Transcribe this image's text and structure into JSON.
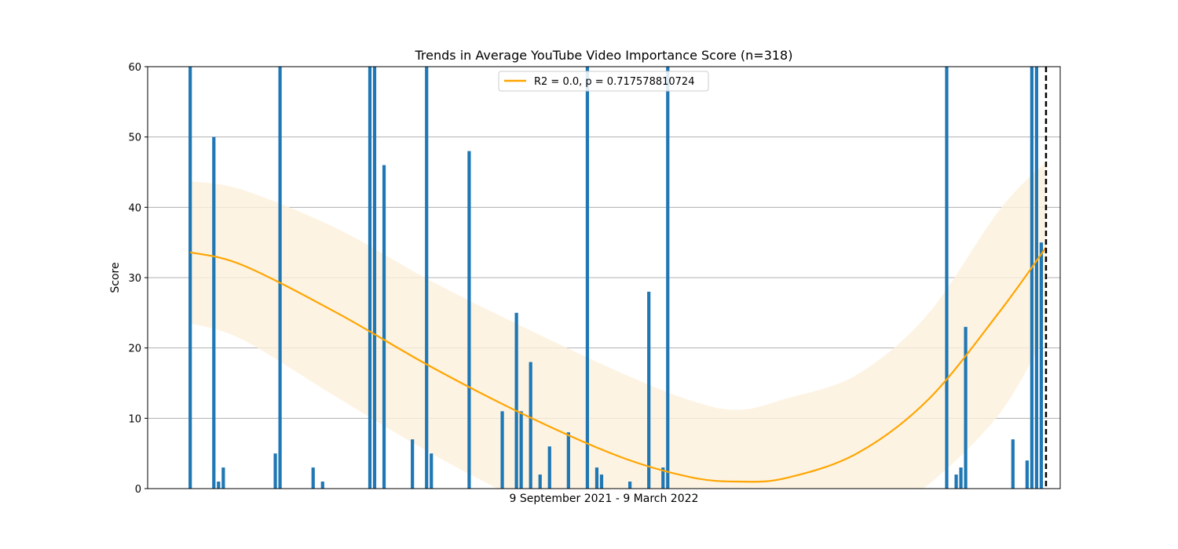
{
  "chart_data": {
    "type": "bar",
    "title": "Trends in Average YouTube Video Importance Score (n=318)",
    "xlabel": "9 September 2021 - 9 March 2022",
    "ylabel": "Score",
    "x_range": [
      0,
      193
    ],
    "ylim": [
      0,
      60
    ],
    "yticks": [
      0,
      10,
      20,
      30,
      40,
      50,
      60
    ],
    "grid": "horizontal",
    "legend_position": "top-center",
    "bar_color": "#1f77b4",
    "trend_color": "#ffa500",
    "band_color": "#fdf0dc",
    "marker_color": "#000000",
    "day_values": [
      [
        9,
        60
      ],
      [
        14,
        50
      ],
      [
        15,
        1
      ],
      [
        16,
        3
      ],
      [
        27,
        5
      ],
      [
        28,
        60
      ],
      [
        35,
        3
      ],
      [
        37,
        1
      ],
      [
        47,
        60
      ],
      [
        48,
        60
      ],
      [
        50,
        46
      ],
      [
        56,
        7
      ],
      [
        59,
        60
      ],
      [
        60,
        5
      ],
      [
        68,
        48
      ],
      [
        75,
        11
      ],
      [
        78,
        25
      ],
      [
        79,
        11
      ],
      [
        81,
        18
      ],
      [
        83,
        2
      ],
      [
        85,
        6
      ],
      [
        89,
        8
      ],
      [
        93,
        60
      ],
      [
        95,
        3
      ],
      [
        96,
        2
      ],
      [
        102,
        1
      ],
      [
        106,
        28
      ],
      [
        109,
        3
      ],
      [
        110,
        60
      ],
      [
        169,
        60
      ],
      [
        171,
        2
      ],
      [
        172,
        3
      ],
      [
        173,
        23
      ],
      [
        183,
        7
      ],
      [
        186,
        4
      ],
      [
        187,
        60
      ],
      [
        188,
        60
      ],
      [
        189,
        35
      ]
    ],
    "trend_fit": {
      "label": "R2 = 0.0, p = 0.717578810724",
      "x": [
        9,
        20,
        40,
        60,
        80,
        100,
        115,
        125,
        135,
        150,
        165,
        180,
        190
      ],
      "y": [
        33.6,
        31.8,
        25.0,
        17.3,
        10.4,
        4.5,
        1.6,
        1.0,
        1.5,
        5.0,
        12.6,
        25.0,
        34.3
      ],
      "ci_low": [
        23.5,
        21.2,
        13.0,
        5.0,
        -2.0,
        -8.0,
        -9.5,
        -10.2,
        -10.0,
        -6.0,
        0.5,
        10.5,
        22.0
      ],
      "ci_high": [
        43.7,
        42.5,
        37.0,
        29.5,
        22.8,
        16.5,
        12.5,
        11.2,
        12.8,
        16.2,
        24.8,
        39.5,
        46.5
      ]
    },
    "reference_line_x": 190
  }
}
